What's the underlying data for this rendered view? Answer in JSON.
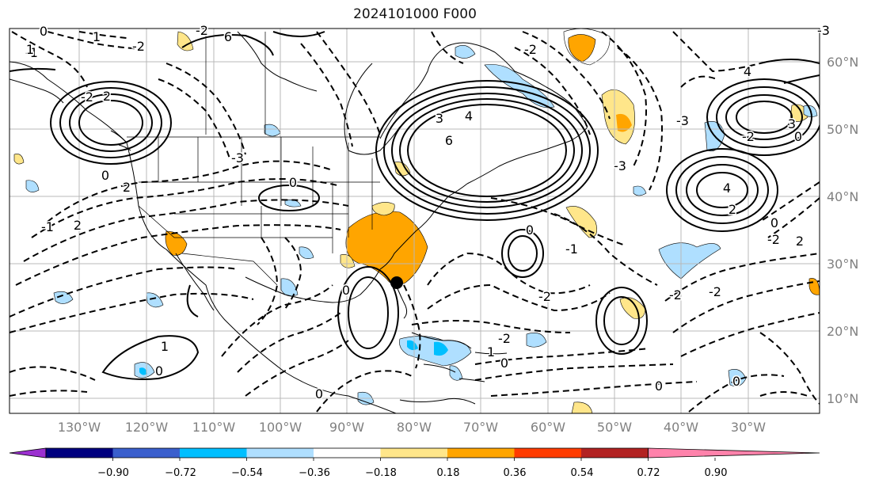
{
  "title": "2024101000 F000",
  "longitudes": [
    "130°W",
    "120°W",
    "110°W",
    "100°W",
    "90°W",
    "80°W",
    "70°W",
    "60°W",
    "50°W",
    "40°W",
    "30°W"
  ],
  "latitudes": [
    "60°N",
    "50°N",
    "40°N",
    "30°N",
    "20°N",
    "10°N"
  ],
  "colorbar": {
    "ticks": [
      "−0.90",
      "−0.72",
      "−0.54",
      "−0.36",
      "−0.18",
      "0.18",
      "0.36",
      "0.54",
      "0.72",
      "0.90"
    ],
    "colors": [
      "#9b30d0",
      "#00007f",
      "#3a5fcd",
      "#00bfff",
      "#afdfff",
      "#ffffff",
      "#ffe68a",
      "#ffa500",
      "#ff3c00",
      "#b22222",
      "#ff82ab"
    ]
  },
  "contour_labels": [
    {
      "text": "0",
      "a": 55,
      "b": 45
    },
    {
      "text": "-1",
      "a": 40,
      "b": 72
    },
    {
      "text": "-2",
      "a": 175,
      "b": 64
    },
    {
      "text": "-2",
      "a": 110,
      "b": 128
    },
    {
      "text": "2",
      "a": 135,
      "b": 127
    },
    {
      "text": "6",
      "a": 288,
      "b": 52
    },
    {
      "text": "2",
      "a": 160,
      "b": 242
    },
    {
      "text": "0",
      "a": 133,
      "b": 227
    },
    {
      "text": "-3",
      "a": 300,
      "b": 205
    },
    {
      "text": "0",
      "a": 370,
      "b": 236
    },
    {
      "text": "2",
      "a": 98,
      "b": 290
    },
    {
      "text": "-1",
      "a": 60,
      "b": 292
    },
    {
      "text": "3",
      "a": 555,
      "b": 155
    },
    {
      "text": "4",
      "a": 592,
      "b": 152
    },
    {
      "text": "6",
      "a": 567,
      "b": 183
    },
    {
      "text": "-2",
      "a": 670,
      "b": 68
    },
    {
      "text": "-3",
      "a": 783,
      "b": 215
    },
    {
      "text": "-1",
      "a": 722,
      "b": 320
    },
    {
      "text": "0",
      "a": 669,
      "b": 296
    },
    {
      "text": "0",
      "a": 437,
      "b": 372
    },
    {
      "text": "-2",
      "a": 688,
      "b": 380
    },
    {
      "text": "-2",
      "a": 637,
      "b": 433
    },
    {
      "text": "1",
      "a": 620,
      "b": 450
    },
    {
      "text": "0",
      "a": 637,
      "b": 464
    },
    {
      "text": "-2",
      "a": 853,
      "b": 378
    },
    {
      "text": "-2",
      "a": 903,
      "b": 374
    },
    {
      "text": "1",
      "a": 208,
      "b": 443
    },
    {
      "text": "0",
      "a": 201,
      "b": 474
    },
    {
      "text": "0",
      "a": 403,
      "b": 503
    },
    {
      "text": "0",
      "a": 832,
      "b": 493
    },
    {
      "text": "0",
      "a": 930,
      "b": 487
    },
    {
      "text": "0",
      "a": 1008,
      "b": 178
    },
    {
      "text": "2",
      "a": 1010,
      "b": 310
    },
    {
      "text": "-2",
      "a": 977,
      "b": 308
    },
    {
      "text": "0",
      "a": 978,
      "b": 287
    },
    {
      "text": "4",
      "a": 918,
      "b": 243
    },
    {
      "text": "2",
      "a": 925,
      "b": 270
    },
    {
      "text": "-2",
      "a": 945,
      "b": 178
    },
    {
      "text": "4",
      "a": 944,
      "b": 96
    },
    {
      "text": "3",
      "a": 1000,
      "b": 162
    },
    {
      "text": "-3",
      "a": 1040,
      "b": 44
    },
    {
      "text": "-3",
      "a": 862,
      "b": 158
    },
    {
      "text": "1",
      "a": 122,
      "b": 52
    },
    {
      "text": "-2",
      "a": 255,
      "b": 44
    },
    {
      "text": "1",
      "a": 38,
      "b": 68
    }
  ]
}
